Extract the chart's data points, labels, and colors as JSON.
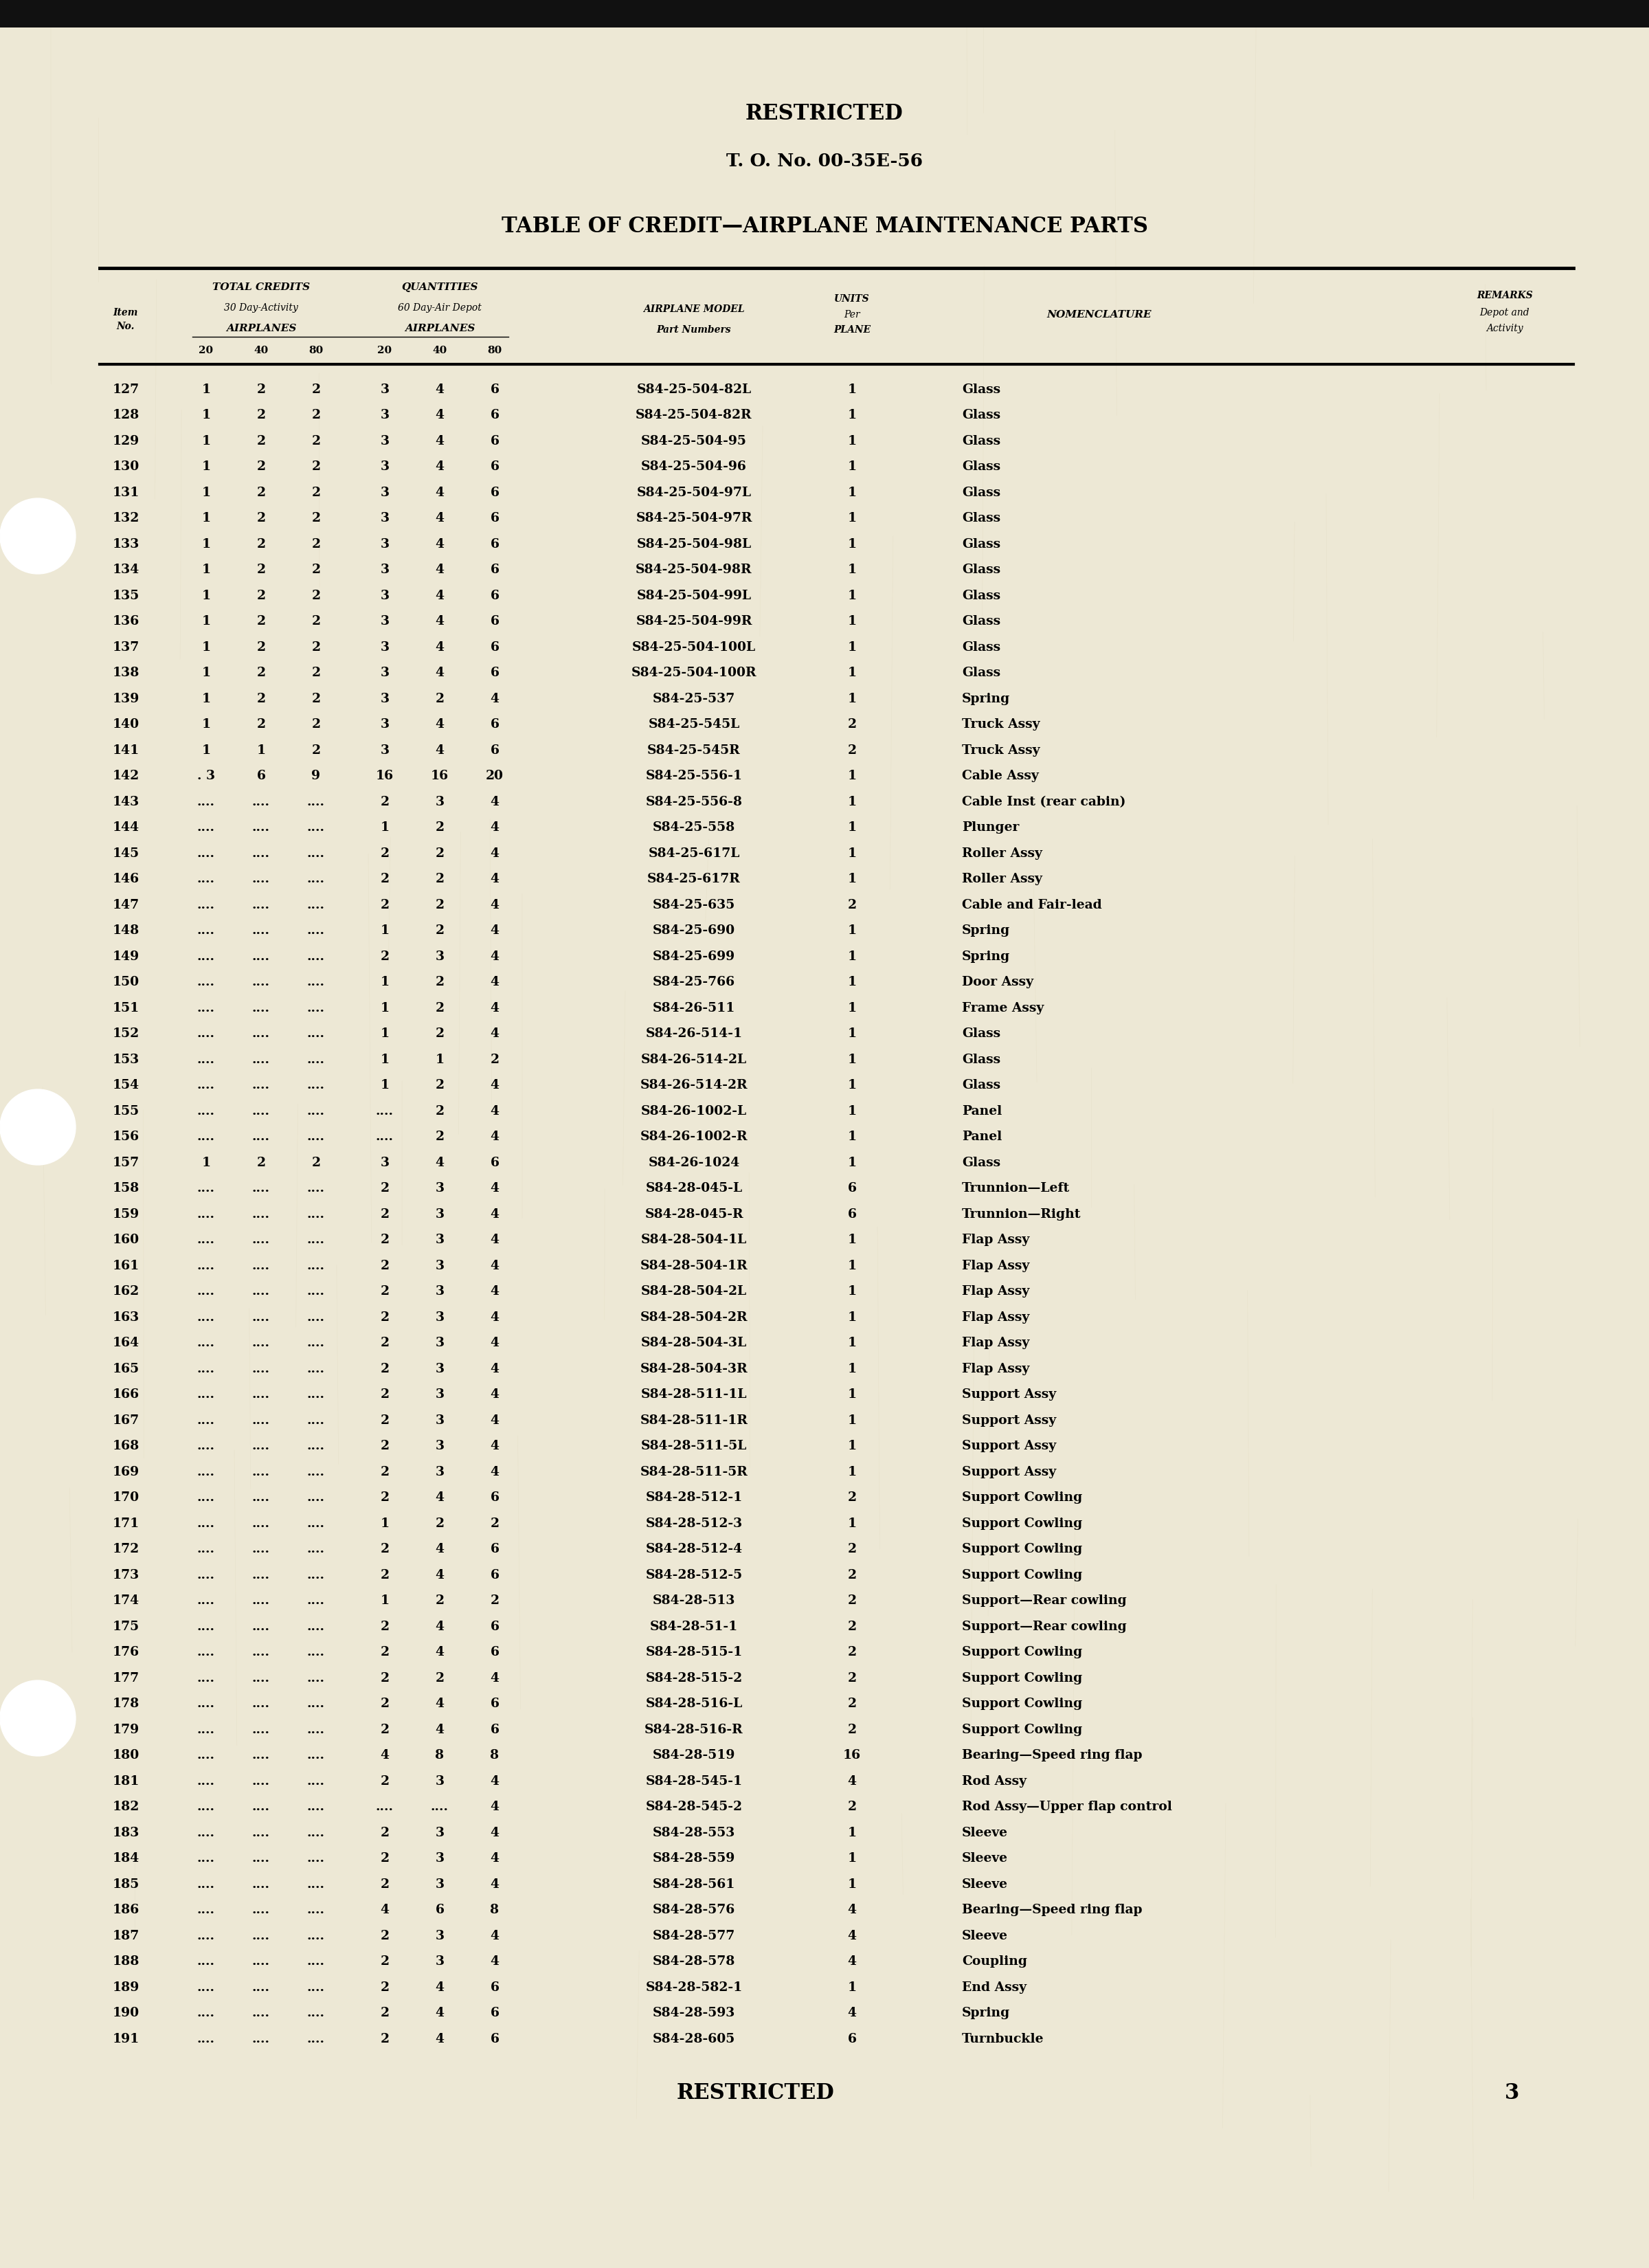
{
  "background_color": "#ede8d5",
  "page_width": 24.0,
  "page_height": 33.0,
  "top_label": "RESTRICTED",
  "to_number": "T. O. No. 00-35E-56",
  "main_title": "TABLE OF CREDIT—AIRPLANE MAINTENANCE PARTS",
  "bottom_label": "RESTRICTED",
  "page_number": "3",
  "rows": [
    [
      "127",
      "1",
      "2",
      "2",
      "3",
      "4",
      "6",
      "S84-25-504-82L",
      "1",
      "Glass"
    ],
    [
      "128",
      "1",
      "2",
      "2",
      "3",
      "4",
      "6",
      "S84-25-504-82R",
      "1",
      "Glass"
    ],
    [
      "129",
      "1",
      "2",
      "2",
      "3",
      "4",
      "6",
      "S84-25-504-95",
      "1",
      "Glass"
    ],
    [
      "130",
      "1",
      "2",
      "2",
      "3",
      "4",
      "6",
      "S84-25-504-96",
      "1",
      "Glass"
    ],
    [
      "131",
      "1",
      "2",
      "2",
      "3",
      "4",
      "6",
      "S84-25-504-97L",
      "1",
      "Glass"
    ],
    [
      "132",
      "1",
      "2",
      "2",
      "3",
      "4",
      "6",
      "S84-25-504-97R",
      "1",
      "Glass"
    ],
    [
      "133",
      "1",
      "2",
      "2",
      "3",
      "4",
      "6",
      "S84-25-504-98L",
      "1",
      "Glass"
    ],
    [
      "134",
      "1",
      "2",
      "2",
      "3",
      "4",
      "6",
      "S84-25-504-98R",
      "1",
      "Glass"
    ],
    [
      "135",
      "1",
      "2",
      "2",
      "3",
      "4",
      "6",
      "S84-25-504-99L",
      "1",
      "Glass"
    ],
    [
      "136",
      "1",
      "2",
      "2",
      "3",
      "4",
      "6",
      "S84-25-504-99R",
      "1",
      "Glass"
    ],
    [
      "137",
      "1",
      "2",
      "2",
      "3",
      "4",
      "6",
      "S84-25-504-100L",
      "1",
      "Glass"
    ],
    [
      "138",
      "1",
      "2",
      "2",
      "3",
      "4",
      "6",
      "S84-25-504-100R",
      "1",
      "Glass"
    ],
    [
      "139",
      "1",
      "2",
      "2",
      "3",
      "2",
      "4",
      "S84-25-537",
      "1",
      "Spring"
    ],
    [
      "140",
      "1",
      "2",
      "2",
      "3",
      "4",
      "6",
      "S84-25-545L",
      "2",
      "Truck Assy"
    ],
    [
      "141",
      "1",
      "1",
      "2",
      "3",
      "4",
      "6",
      "S84-25-545R",
      "2",
      "Truck Assy"
    ],
    [
      "142",
      ". 3",
      "6",
      "9",
      "16",
      "16",
      "20",
      "S84-25-556-1",
      "1",
      "Cable Assy"
    ],
    [
      "143",
      "....",
      "....",
      "....",
      "2",
      "3",
      "4",
      "S84-25-556-8",
      "1",
      "Cable Inst (rear cabin)"
    ],
    [
      "144",
      "....",
      "....",
      "....",
      "1",
      "2",
      "4",
      "S84-25-558",
      "1",
      "Plunger"
    ],
    [
      "145",
      "....",
      "....",
      "....",
      "2",
      "2",
      "4",
      "S84-25-617L",
      "1",
      "Roller Assy"
    ],
    [
      "146",
      "....",
      "....",
      "....",
      "2",
      "2",
      "4",
      "S84-25-617R",
      "1",
      "Roller Assy"
    ],
    [
      "147",
      "....",
      "....",
      "....",
      "2",
      "2",
      "4",
      "S84-25-635",
      "2",
      "Cable and Fair-lead"
    ],
    [
      "148",
      "....",
      "....",
      "....",
      "1",
      "2",
      "4",
      "S84-25-690",
      "1",
      "Spring"
    ],
    [
      "149",
      "....",
      "....",
      "....",
      "2",
      "3",
      "4",
      "S84-25-699",
      "1",
      "Spring"
    ],
    [
      "150",
      "....",
      "....",
      "....",
      "1",
      "2",
      "4",
      "S84-25-766",
      "1",
      "Door Assy"
    ],
    [
      "151",
      "....",
      "....",
      "....",
      "1",
      "2",
      "4",
      "S84-26-511",
      "1",
      "Frame Assy"
    ],
    [
      "152",
      "....",
      "....",
      "....",
      "1",
      "2",
      "4",
      "S84-26-514-1",
      "1",
      "Glass"
    ],
    [
      "153",
      "....",
      "....",
      "....",
      "1",
      "1",
      "2",
      "S84-26-514-2L",
      "1",
      "Glass"
    ],
    [
      "154",
      "....",
      "....",
      "....",
      "1",
      "2",
      "4",
      "S84-26-514-2R",
      "1",
      "Glass"
    ],
    [
      "155",
      "....",
      "....",
      "....",
      "....",
      "2",
      "4",
      "S84-26-1002-L",
      "1",
      "Panel"
    ],
    [
      "156",
      "....",
      "....",
      "....",
      "....",
      "2",
      "4",
      "S84-26-1002-R",
      "1",
      "Panel"
    ],
    [
      "157",
      "1",
      "2",
      "2",
      "3",
      "4",
      "6",
      "S84-26-1024",
      "1",
      "Glass"
    ],
    [
      "158",
      "....",
      "....",
      "....",
      "2",
      "3",
      "4",
      "S84-28-045-L",
      "6",
      "Trunnion—Left"
    ],
    [
      "159",
      "....",
      "....",
      "....",
      "2",
      "3",
      "4",
      "S84-28-045-R",
      "6",
      "Trunnion—Right"
    ],
    [
      "160",
      "....",
      "....",
      "....",
      "2",
      "3",
      "4",
      "S84-28-504-1L",
      "1",
      "Flap Assy"
    ],
    [
      "161",
      "....",
      "....",
      "....",
      "2",
      "3",
      "4",
      "S84-28-504-1R",
      "1",
      "Flap Assy"
    ],
    [
      "162",
      "....",
      "....",
      "....",
      "2",
      "3",
      "4",
      "S84-28-504-2L",
      "1",
      "Flap Assy"
    ],
    [
      "163",
      "....",
      "....",
      "....",
      "2",
      "3",
      "4",
      "S84-28-504-2R",
      "1",
      "Flap Assy"
    ],
    [
      "164",
      "....",
      "....",
      "....",
      "2",
      "3",
      "4",
      "S84-28-504-3L",
      "1",
      "Flap Assy"
    ],
    [
      "165",
      "....",
      "....",
      "....",
      "2",
      "3",
      "4",
      "S84-28-504-3R",
      "1",
      "Flap Assy"
    ],
    [
      "166",
      "....",
      "....",
      "....",
      "2",
      "3",
      "4",
      "S84-28-511-1L",
      "1",
      "Support Assy"
    ],
    [
      "167",
      "....",
      "....",
      "....",
      "2",
      "3",
      "4",
      "S84-28-511-1R",
      "1",
      "Support Assy"
    ],
    [
      "168",
      "....",
      "....",
      "....",
      "2",
      "3",
      "4",
      "S84-28-511-5L",
      "1",
      "Support Assy"
    ],
    [
      "169",
      "....",
      "....",
      "....",
      "2",
      "3",
      "4",
      "S84-28-511-5R",
      "1",
      "Support Assy"
    ],
    [
      "170",
      "....",
      "....",
      "....",
      "2",
      "4",
      "6",
      "S84-28-512-1",
      "2",
      "Support Cowling"
    ],
    [
      "171",
      "....",
      "....",
      "....",
      "1",
      "2",
      "2",
      "S84-28-512-3",
      "1",
      "Support Cowling"
    ],
    [
      "172",
      "....",
      "....",
      "....",
      "2",
      "4",
      "6",
      "S84-28-512-4",
      "2",
      "Support Cowling"
    ],
    [
      "173",
      "....",
      "....",
      "....",
      "2",
      "4",
      "6",
      "S84-28-512-5",
      "2",
      "Support Cowling"
    ],
    [
      "174",
      "....",
      "....",
      "....",
      "1",
      "2",
      "2",
      "S84-28-513",
      "2",
      "Support—Rear cowling"
    ],
    [
      "175",
      "....",
      "....",
      "....",
      "2",
      "4",
      "6",
      "S84-28-51-1",
      "2",
      "Support—Rear cowling"
    ],
    [
      "176",
      "....",
      "....",
      "....",
      "2",
      "4",
      "6",
      "S84-28-515-1",
      "2",
      "Support Cowling"
    ],
    [
      "177",
      "....",
      "....",
      "....",
      "2",
      "2",
      "4",
      "S84-28-515-2",
      "2",
      "Support Cowling"
    ],
    [
      "178",
      "....",
      "....",
      "....",
      "2",
      "4",
      "6",
      "S84-28-516-L",
      "2",
      "Support Cowling"
    ],
    [
      "179",
      "....",
      "....",
      "....",
      "2",
      "4",
      "6",
      "S84-28-516-R",
      "2",
      "Support Cowling"
    ],
    [
      "180",
      "....",
      "....",
      "....",
      "4",
      "8",
      "8",
      "S84-28-519",
      "16",
      "Bearing—Speed ring flap"
    ],
    [
      "181",
      "....",
      "....",
      "....",
      "2",
      "3",
      "4",
      "S84-28-545-1",
      "4",
      "Rod Assy"
    ],
    [
      "182",
      "....",
      "....",
      "....",
      "....",
      "....",
      "4",
      "S84-28-545-2",
      "2",
      "Rod Assy—Upper flap control"
    ],
    [
      "183",
      "....",
      "....",
      "....",
      "2",
      "3",
      "4",
      "S84-28-553",
      "1",
      "Sleeve"
    ],
    [
      "184",
      "....",
      "....",
      "....",
      "2",
      "3",
      "4",
      "S84-28-559",
      "1",
      "Sleeve"
    ],
    [
      "185",
      "....",
      "....",
      "....",
      "2",
      "3",
      "4",
      "S84-28-561",
      "1",
      "Sleeve"
    ],
    [
      "186",
      "....",
      "....",
      "....",
      "4",
      "6",
      "8",
      "S84-28-576",
      "4",
      "Bearing—Speed ring flap"
    ],
    [
      "187",
      "....",
      "....",
      "....",
      "2",
      "3",
      "4",
      "S84-28-577",
      "4",
      "Sleeve"
    ],
    [
      "188",
      "....",
      "....",
      "....",
      "2",
      "3",
      "4",
      "S84-28-578",
      "4",
      "Coupling"
    ],
    [
      "189",
      "....",
      "....",
      "....",
      "2",
      "4",
      "6",
      "S84-28-582-1",
      "1",
      "End Assy"
    ],
    [
      "190",
      "....",
      "....",
      "....",
      "2",
      "4",
      "6",
      "S84-28-593",
      "4",
      "Spring"
    ],
    [
      "191",
      "....",
      "....",
      "....",
      "2",
      "4",
      "6",
      "S84-28-605",
      "6",
      "Turnbuckle"
    ]
  ]
}
